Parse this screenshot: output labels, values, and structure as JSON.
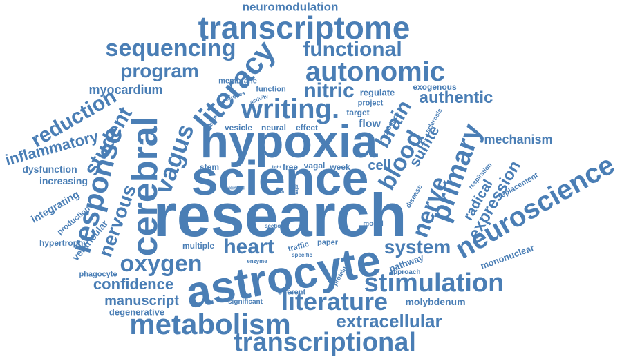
{
  "color": "#4a7eb5",
  "words": {
    "research": "research",
    "science": "science",
    "hypoxia": "hypoxia",
    "astrocyte": "astrocyte",
    "transcriptome": "transcriptome",
    "literacy": "literacy",
    "writing": "writing.",
    "cerebral": "cerebral",
    "autonomic": "autonomic",
    "metabolism": "metabolism",
    "transcriptional": "transcriptional",
    "stimulation": "stimulation",
    "literature": "literature",
    "neuroscience": "neuroscience",
    "primary": "primary",
    "response": "response",
    "sequencing": "sequencing",
    "functional": "functional",
    "oxygen": "oxygen",
    "heart": "heart",
    "nitric": "nitric",
    "program": "program",
    "vagus": "vagus",
    "student": "student",
    "reduction": "reduction",
    "inflammatory": "inflammatory",
    "blood": "blood",
    "brain": "brain",
    "nervous": "nervous",
    "nerve": "nerve",
    "extracellular": "extracellular",
    "system": "system",
    "authentic": "authentic",
    "confidence": "confidence",
    "manuscript": "manuscript",
    "expression": "expression",
    "myocardium": "myocardium",
    "neuromodulation": "neuromodulation",
    "cell": "cell",
    "sulfite": "sulfite",
    "radical": "radical",
    "mechanism": "mechanism",
    "mononuclear": "mononuclear",
    "increasing": "increasing",
    "dysfunction": "dysfunction",
    "integrating": "integrating",
    "hypertrophy": "hypertrophy",
    "ventricular": "ventricular",
    "production": "production",
    "phagocyte": "phagocyte",
    "degenerative": "degenerative",
    "significant": "significant",
    "efferent": "efferent",
    "pathway": "pathway",
    "approach": "approach",
    "molybdenum": "molybdenum",
    "membrane": "membrane",
    "function": "function",
    "regulate": "regulate",
    "exogenous": "exogenous",
    "project": "project",
    "target": "target",
    "flow": "flow",
    "vesicle": "vesicle",
    "neural": "neural",
    "effect": "effect",
    "activity": "activity",
    "cargoes": "cargoes",
    "animal": "animal",
    "stem": "stem",
    "free": "free",
    "vagal": "vagal",
    "week": "week",
    "light": "light",
    "clinical": "clinical",
    "data": "data",
    "major": "major",
    "produce": "produce",
    "sclerosis": "sclerosis",
    "disease": "disease",
    "respiration": "respiration",
    "replacement": "replacement",
    "section": "section",
    "nscs": "nscs",
    "model": "model",
    "multiple": "multiple",
    "traffic": "traffic",
    "paper": "paper",
    "specific": "specific",
    "enzyme": "enzyme",
    "protein": "protein"
  }
}
